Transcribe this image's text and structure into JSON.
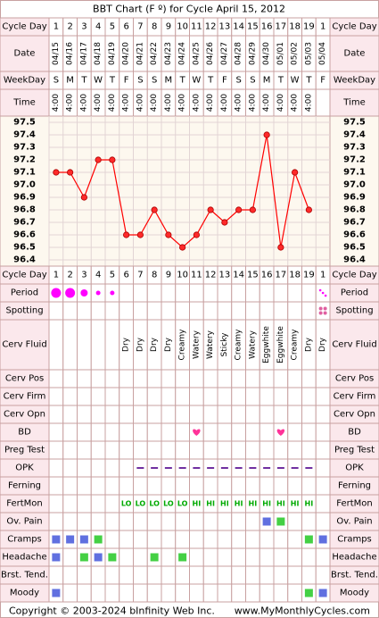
{
  "title": "BBT Chart (F º) for Cycle April 15, 2012",
  "footer": {
    "copyright": "Copyright © 2003-2024 bInfinity Web Inc.",
    "site": "www.MyMonthlyCycles.com"
  },
  "row_labels": {
    "cycle_day": "Cycle Day",
    "date": "Date",
    "weekday": "WeekDay",
    "time": "Time"
  },
  "cycle_days": [
    "1",
    "2",
    "3",
    "4",
    "5",
    "6",
    "7",
    "8",
    "9",
    "10",
    "11",
    "12",
    "13",
    "14",
    "15",
    "16",
    "17",
    "18",
    "19",
    "1"
  ],
  "dates": [
    "04/15",
    "04/16",
    "04/17",
    "04/18",
    "04/19",
    "04/20",
    "04/21",
    "04/22",
    "04/23",
    "04/24",
    "04/25",
    "04/26",
    "04/27",
    "04/28",
    "04/29",
    "04/30",
    "05/01",
    "05/02",
    "05/03",
    "05/04"
  ],
  "weekdays": [
    "S",
    "M",
    "T",
    "W",
    "T",
    "F",
    "S",
    "S",
    "M",
    "T",
    "W",
    "T",
    "F",
    "S",
    "S",
    "M",
    "T",
    "W",
    "T",
    "F"
  ],
  "times": [
    "4:00",
    "4:00",
    "4:00",
    "4:00",
    "4:00",
    "4:00",
    "4:00",
    "4:00",
    "4:00",
    "4:00",
    "4:00",
    "4:00",
    "4:00",
    "4:00",
    "4:00",
    "4:00",
    "4:00",
    "4:00",
    "4:00",
    ""
  ],
  "temp_ticks": [
    "97.5",
    "97.4",
    "97.3",
    "97.2",
    "97.1",
    "97.0",
    "96.9",
    "96.8",
    "96.7",
    "96.6",
    "96.5",
    "96.4"
  ],
  "chart_data": {
    "type": "line",
    "title": "BBT Chart (F º) for Cycle April 15, 2012",
    "x": [
      "04/15",
      "04/16",
      "04/17",
      "04/18",
      "04/19",
      "04/20",
      "04/21",
      "04/22",
      "04/23",
      "04/24",
      "04/25",
      "04/26",
      "04/27",
      "04/28",
      "04/29",
      "04/30",
      "05/01",
      "05/02",
      "05/03",
      "05/04"
    ],
    "series": [
      {
        "values": [
          97.1,
          97.1,
          96.9,
          97.2,
          97.2,
          96.6,
          96.6,
          96.8,
          96.6,
          96.5,
          96.6,
          96.8,
          96.7,
          96.8,
          96.8,
          97.4,
          96.5,
          97.1,
          96.8,
          null
        ]
      }
    ],
    "ylim": [
      96.4,
      97.5
    ],
    "grid": true,
    "color": "#ff0000"
  },
  "rows": [
    {
      "key": "period",
      "label": "Period"
    },
    {
      "key": "spotting",
      "label": "Spotting"
    },
    {
      "key": "cerv_fluid",
      "label": "Cerv Fluid"
    },
    {
      "key": "cerv_pos",
      "label": "Cerv Pos"
    },
    {
      "key": "cerv_firm",
      "label": "Cerv Firm"
    },
    {
      "key": "cerv_opn",
      "label": "Cerv Opn"
    },
    {
      "key": "bd",
      "label": "BD"
    },
    {
      "key": "preg_test",
      "label": "Preg Test"
    },
    {
      "key": "opk",
      "label": "OPK"
    },
    {
      "key": "ferning",
      "label": "Ferning"
    },
    {
      "key": "fertmon",
      "label": "FertMon"
    },
    {
      "key": "ov_pain",
      "label": "Ov. Pain"
    },
    {
      "key": "cramps",
      "label": "Cramps"
    },
    {
      "key": "headache",
      "label": "Headache"
    },
    {
      "key": "brst_tend",
      "label": "Brst. Tend."
    },
    {
      "key": "moody",
      "label": "Moody"
    }
  ],
  "period": [
    "heavy",
    "heavy",
    "medium",
    "light",
    "light",
    "",
    "",
    "",
    "",
    "",
    "",
    "",
    "",
    "",
    "",
    "",
    "",
    "",
    "",
    "spot"
  ],
  "spotting": [
    "",
    "",
    "",
    "",
    "",
    "",
    "",
    "",
    "",
    "",
    "",
    "",
    "",
    "",
    "",
    "",
    "",
    "",
    "",
    "yes"
  ],
  "cerv_fluid": [
    "",
    "",
    "",
    "",
    "",
    "Dry",
    "Dry",
    "Dry",
    "Dry",
    "Creamy",
    "Watery",
    "Watery",
    "Sticky",
    "Creamy",
    "Watery",
    "Eggwhite",
    "Eggwhite",
    "Creamy",
    "Dry",
    "Dry"
  ],
  "bd": [
    "",
    "",
    "",
    "",
    "",
    "",
    "",
    "",
    "",
    "",
    "yes",
    "",
    "",
    "",
    "",
    "",
    "yes",
    "",
    "",
    ""
  ],
  "opk": [
    "",
    "",
    "",
    "",
    "",
    "",
    "neg",
    "neg",
    "neg",
    "neg",
    "neg",
    "neg",
    "neg",
    "neg",
    "neg",
    "neg",
    "neg",
    "neg",
    "neg",
    ""
  ],
  "fertmon": [
    "",
    "",
    "",
    "",
    "",
    "LO",
    "LO",
    "LO",
    "LO",
    "LO",
    "HI",
    "HI",
    "HI",
    "HI",
    "HI",
    "HI",
    "HI",
    "HI",
    "HI",
    ""
  ],
  "ov_pain": [
    "",
    "",
    "",
    "",
    "",
    "",
    "",
    "",
    "",
    "",
    "",
    "",
    "",
    "",
    "",
    "blue",
    "green",
    "",
    "",
    ""
  ],
  "cramps": [
    "blue",
    "blue",
    "blue",
    "green",
    "",
    "",
    "",
    "",
    "",
    "",
    "",
    "",
    "",
    "",
    "",
    "",
    "",
    "",
    "green",
    "blue"
  ],
  "headache": [
    "blue",
    "",
    "green",
    "blue",
    "green",
    "",
    "",
    "green",
    "",
    "green",
    "",
    "",
    "",
    "",
    "",
    "",
    "",
    "",
    "",
    ""
  ],
  "moody": [
    "blue",
    "",
    "",
    "",
    "",
    "",
    "",
    "",
    "",
    "",
    "",
    "",
    "",
    "",
    "",
    "",
    "",
    "",
    "green",
    "blue"
  ],
  "colors": {
    "border": "#c8a0a0",
    "row_label_bg": "#fbe8ec",
    "temp_bg": "#fdf8ef",
    "line": "#ff0000",
    "period_dot": "#ff00ff",
    "heart": "#ff3399",
    "fertmon": "#00aa00",
    "opk": "#7030a0",
    "blue_box": "#6070e0",
    "green_box": "#44d044"
  }
}
